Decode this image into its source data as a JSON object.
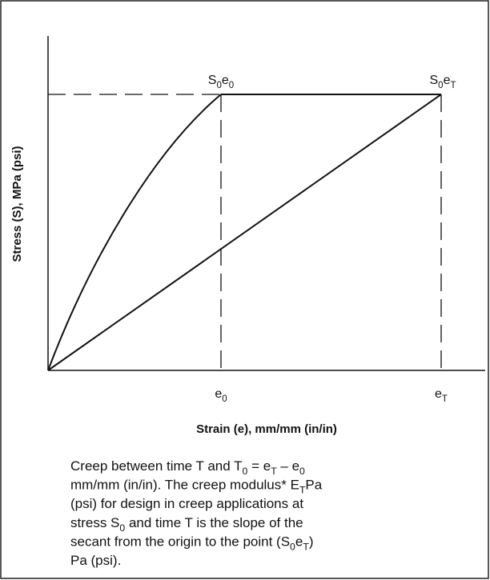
{
  "diagram": {
    "y_axis_title": "Stress (S), MPa (psi)",
    "x_axis_title": "Strain (e), mm/mm (in/in)",
    "point_initial": [
      {
        "text": "S"
      },
      {
        "sub": "0"
      },
      {
        "text": "e"
      },
      {
        "sub": "0"
      }
    ],
    "point_final": [
      {
        "text": "S"
      },
      {
        "sub": "0"
      },
      {
        "text": "e"
      },
      {
        "sub": "T"
      }
    ],
    "tick_initial": [
      {
        "text": "e"
      },
      {
        "sub": "0"
      }
    ],
    "tick_final": [
      {
        "text": "e"
      },
      {
        "sub": "T"
      }
    ]
  },
  "caption": {
    "lines": [
      [
        {
          "text": "Creep between time T and T"
        },
        {
          "sub": "0"
        },
        {
          "text": " = e"
        },
        {
          "sub": "T"
        },
        {
          "text": " – e"
        },
        {
          "sub": "0"
        }
      ],
      [
        {
          "text": "mm/mm (in/in). The creep modulus* E"
        },
        {
          "sub": "T"
        },
        {
          "text": "Pa"
        }
      ],
      [
        {
          "text": "(psi) for design in creep applications at"
        }
      ],
      [
        {
          "text": "stress S"
        },
        {
          "sub": "0"
        },
        {
          "text": " and time T is the slope of the"
        }
      ],
      [
        {
          "text": "secant from the origin to the point (S"
        },
        {
          "sub": "0"
        },
        {
          "text": "e"
        },
        {
          "sub": "T"
        },
        {
          "text": ")"
        }
      ],
      [
        {
          "text": "Pa (psi)."
        }
      ]
    ]
  }
}
